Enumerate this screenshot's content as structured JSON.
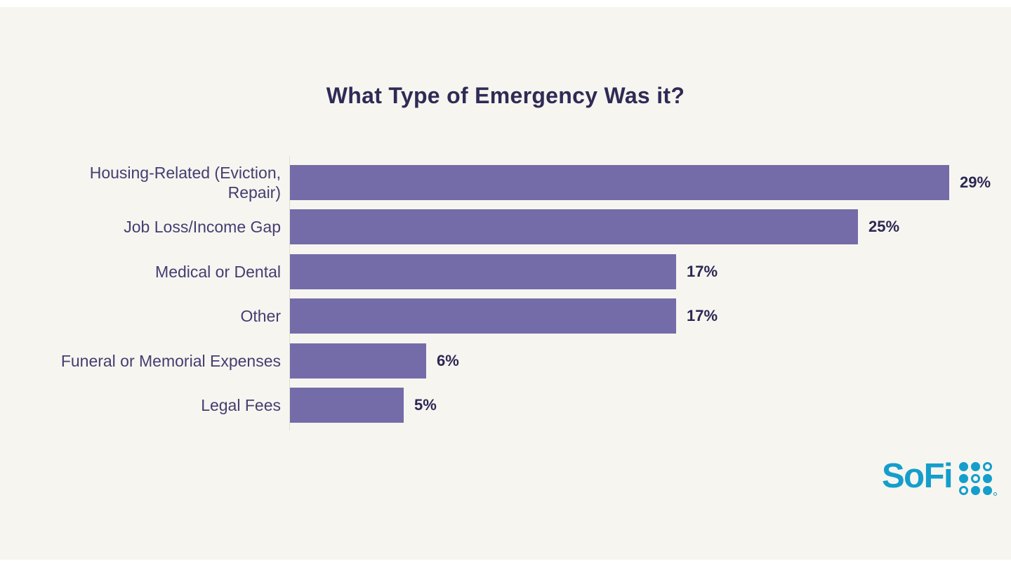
{
  "title": "What Type of Emergency Was it?",
  "chart_data": {
    "type": "bar",
    "orientation": "horizontal",
    "title": "What Type of Emergency Was it?",
    "categories": [
      "Housing-Related (Eviction, Repair)",
      "Job Loss/Income Gap",
      "Medical or Dental",
      "Other",
      "Funeral or Memorial Expenses",
      "Legal Fees"
    ],
    "values": [
      29,
      25,
      17,
      17,
      6,
      5
    ],
    "value_labels": [
      "29%",
      "25%",
      "17%",
      "17%",
      "6%",
      "5%"
    ],
    "unit": "percent",
    "xlim": [
      0,
      29
    ],
    "grid": false,
    "legend": false,
    "bar_color": "#746ca8",
    "category_label_color": "#433e70",
    "value_label_color": "#2b2753",
    "title_color": "#2f2b56",
    "background_color": "#f7f5f0"
  },
  "rows": [
    {
      "label_lines": [
        "Housing-Related (Eviction,",
        "Repair)"
      ],
      "value": 29,
      "value_label": "29%"
    },
    {
      "label_lines": [
        "Job Loss/Income Gap"
      ],
      "value": 25,
      "value_label": "25%"
    },
    {
      "label_lines": [
        "Medical or Dental"
      ],
      "value": 17,
      "value_label": "17%"
    },
    {
      "label_lines": [
        "Other"
      ],
      "value": 17,
      "value_label": "17%"
    },
    {
      "label_lines": [
        "Funeral or Memorial Expenses"
      ],
      "value": 6,
      "value_label": "6%"
    },
    {
      "label_lines": [
        "Legal Fees"
      ],
      "value": 5,
      "value_label": "5%"
    }
  ],
  "branding": {
    "logo_text": "SoFi",
    "logo_color": "#149ecb",
    "dot_pattern": [
      [
        "filled",
        "filled",
        "ring"
      ],
      [
        "filled",
        "ring",
        "filled"
      ],
      [
        "ring",
        "filled",
        "filled"
      ]
    ]
  }
}
